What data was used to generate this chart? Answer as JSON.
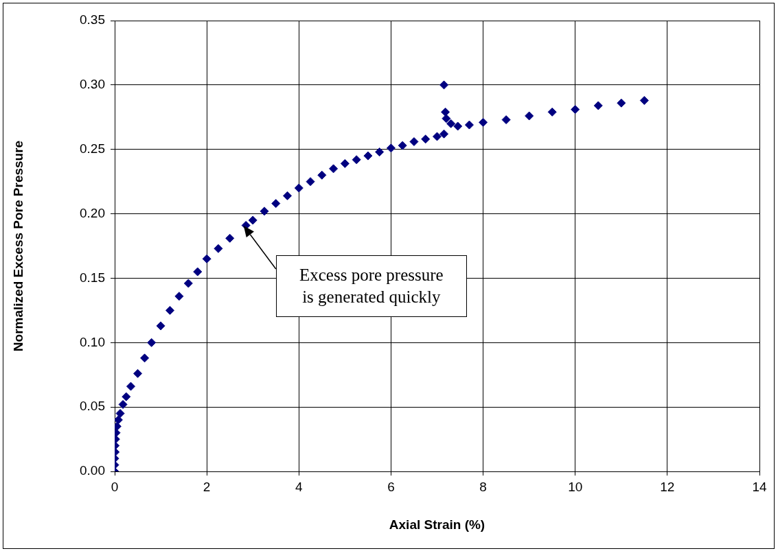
{
  "chart_data": {
    "type": "scatter",
    "xlabel": "Axial Strain (%)",
    "ylabel": "Normalized Excess Pore Pressure",
    "xlim": [
      0,
      14
    ],
    "xticks": [
      0,
      2,
      4,
      6,
      8,
      10,
      12,
      14
    ],
    "ylim": [
      0,
      0.35
    ],
    "yticks": [
      {
        "value": 0,
        "label": "0.00"
      },
      {
        "value": 0.05,
        "label": "0.05"
      },
      {
        "value": 0.1,
        "label": "0.10"
      },
      {
        "value": 0.15,
        "label": "0.15"
      },
      {
        "value": 0.2,
        "label": "0.20"
      },
      {
        "value": 0.25,
        "label": "0.25"
      },
      {
        "value": 0.3,
        "label": "0.30"
      },
      {
        "value": 0.35,
        "label": "0.35"
      }
    ],
    "grid": true,
    "legend": false,
    "marker": "diamond",
    "annotations": [
      "Excess pore pressure is generated quickly"
    ],
    "series": [
      {
        "color": "#000080",
        "x": [
          0,
          0,
          0,
          0.01,
          0.01,
          0.02,
          0.03,
          0.05,
          0.08,
          0.12,
          0.18,
          0.25,
          0.35,
          0.5,
          0.65,
          0.8,
          1.0,
          1.2,
          1.4,
          1.6,
          1.8,
          2.0,
          2.25,
          2.5,
          2.85,
          3.0,
          3.25,
          3.5,
          3.75,
          4.0,
          4.25,
          4.5,
          4.75,
          5.0,
          5.25,
          5.5,
          5.75,
          6.0,
          6.25,
          6.5,
          6.75,
          7.0,
          7.15,
          7.15,
          7.18,
          7.2,
          7.3,
          7.45,
          7.7,
          8.0,
          8.5,
          9.0,
          9.5,
          10.0,
          10.5,
          11.0,
          11.5
        ],
        "values": [
          0,
          0.005,
          0.01,
          0.015,
          0.02,
          0.025,
          0.03,
          0.035,
          0.04,
          0.045,
          0.052,
          0.058,
          0.066,
          0.076,
          0.088,
          0.1,
          0.113,
          0.125,
          0.136,
          0.146,
          0.155,
          0.165,
          0.173,
          0.181,
          0.191,
          0.195,
          0.202,
          0.208,
          0.214,
          0.22,
          0.225,
          0.23,
          0.235,
          0.239,
          0.242,
          0.245,
          0.248,
          0.251,
          0.253,
          0.256,
          0.258,
          0.26,
          0.262,
          0.3,
          0.279,
          0.274,
          0.27,
          0.268,
          0.269,
          0.271,
          0.273,
          0.276,
          0.279,
          0.281,
          0.284,
          0.286,
          0.288
        ]
      }
    ]
  }
}
